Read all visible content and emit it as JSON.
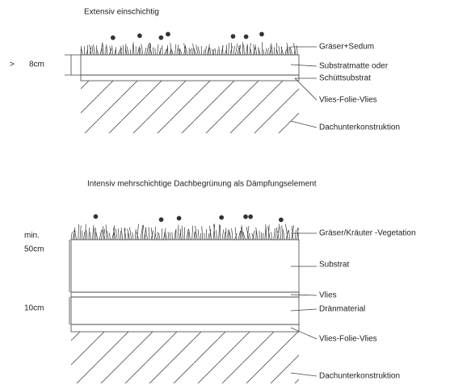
{
  "top": {
    "title": "Extensiv einschichtig",
    "dimension": {
      "marker": ">",
      "value": "8cm"
    },
    "labels": [
      "Gräser+Sedum",
      "Substratmatte oder",
      "Schüttsubstrat",
      "Vlies-Folie-Vlies",
      "Dachunterkonstruktion"
    ]
  },
  "bottom": {
    "title": "Intensiv mehrschichtige Dachbegrünung als Dämpfungselement",
    "dimensions": [
      {
        "lines": [
          "min.",
          "50cm"
        ]
      },
      {
        "lines": [
          "10cm"
        ]
      }
    ],
    "labels": [
      "Gräser/Kräuter -Vegetation",
      "Substrat",
      "Vlies",
      "Dränmaterial",
      "Vlies-Folie-Vlies",
      "Dachunterkonstruktion"
    ]
  }
}
